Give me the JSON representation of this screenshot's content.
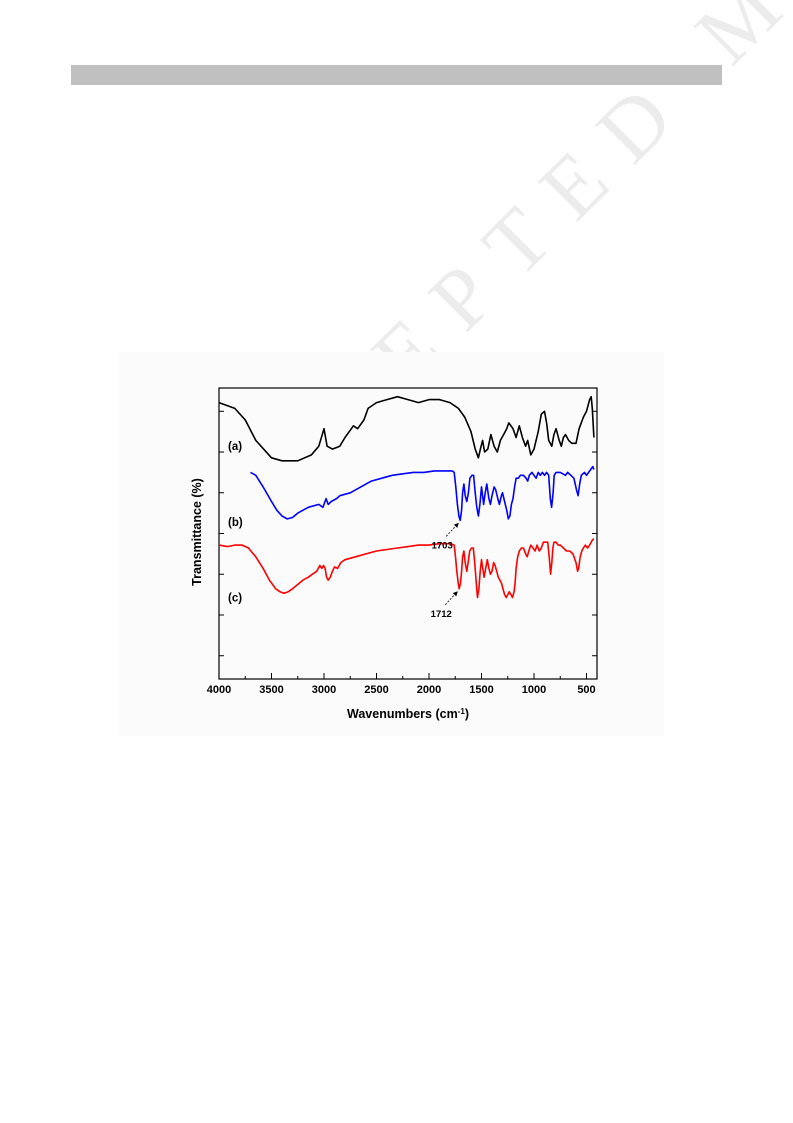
{
  "page": {
    "header_bar_color": "#c0c0c0"
  },
  "watermark": {
    "text": "ACCEPTED MANUSCRIPT"
  },
  "chart_data": {
    "type": "line",
    "xlabel": "Wavenumbers (cm",
    "xlabel_sup": "-1",
    "xlabel_tail": ")",
    "ylabel": "Transmittance (%)",
    "xlim": [
      4000,
      400
    ],
    "x_reversed": true,
    "x_ticks": [
      4000,
      3500,
      3000,
      2500,
      2000,
      1500,
      1000,
      500
    ],
    "y_units": "offset arbitrary",
    "ylim": [
      0,
      100
    ],
    "grid": false,
    "legend": "none",
    "series": [
      {
        "name": "(a)",
        "color": "#000000",
        "points": [
          [
            4000,
            95
          ],
          [
            3850,
            93
          ],
          [
            3750,
            89
          ],
          [
            3650,
            82
          ],
          [
            3500,
            76
          ],
          [
            3400,
            75
          ],
          [
            3250,
            75
          ],
          [
            3120,
            77
          ],
          [
            3050,
            80
          ],
          [
            3000,
            86
          ],
          [
            2970,
            80
          ],
          [
            2920,
            79
          ],
          [
            2850,
            80
          ],
          [
            2800,
            83
          ],
          [
            2760,
            85
          ],
          [
            2720,
            87
          ],
          [
            2680,
            86
          ],
          [
            2620,
            89
          ],
          [
            2580,
            93
          ],
          [
            2500,
            95
          ],
          [
            2400,
            96
          ],
          [
            2300,
            97
          ],
          [
            2200,
            96
          ],
          [
            2100,
            95
          ],
          [
            2000,
            96
          ],
          [
            1900,
            96
          ],
          [
            1800,
            95
          ],
          [
            1720,
            93
          ],
          [
            1660,
            90
          ],
          [
            1600,
            85
          ],
          [
            1560,
            79
          ],
          [
            1530,
            76
          ],
          [
            1510,
            79
          ],
          [
            1490,
            82
          ],
          [
            1470,
            78
          ],
          [
            1440,
            79
          ],
          [
            1410,
            84
          ],
          [
            1380,
            80
          ],
          [
            1350,
            78
          ],
          [
            1320,
            82
          ],
          [
            1290,
            84
          ],
          [
            1260,
            86
          ],
          [
            1240,
            88
          ],
          [
            1200,
            86
          ],
          [
            1170,
            83
          ],
          [
            1140,
            87
          ],
          [
            1110,
            83
          ],
          [
            1080,
            80
          ],
          [
            1060,
            82
          ],
          [
            1030,
            77
          ],
          [
            1000,
            79
          ],
          [
            960,
            85
          ],
          [
            930,
            91
          ],
          [
            900,
            92
          ],
          [
            880,
            88
          ],
          [
            860,
            82
          ],
          [
            830,
            80
          ],
          [
            810,
            84
          ],
          [
            790,
            86
          ],
          [
            760,
            82
          ],
          [
            740,
            80
          ],
          [
            720,
            83
          ],
          [
            700,
            84
          ],
          [
            670,
            82
          ],
          [
            640,
            81
          ],
          [
            600,
            81
          ],
          [
            570,
            86
          ],
          [
            530,
            90
          ],
          [
            500,
            92
          ],
          [
            470,
            96
          ],
          [
            455,
            97
          ],
          [
            445,
            93
          ],
          [
            430,
            83
          ]
        ]
      },
      {
        "name": "(b)",
        "color": "#0000ff",
        "points": [
          [
            3700,
            71
          ],
          [
            3650,
            70
          ],
          [
            3580,
            66
          ],
          [
            3500,
            61
          ],
          [
            3450,
            58
          ],
          [
            3400,
            56
          ],
          [
            3350,
            55
          ],
          [
            3300,
            55.5
          ],
          [
            3250,
            57
          ],
          [
            3150,
            59
          ],
          [
            3050,
            60
          ],
          [
            3010,
            59
          ],
          [
            2980,
            62
          ],
          [
            2960,
            60
          ],
          [
            2930,
            61
          ],
          [
            2880,
            62
          ],
          [
            2850,
            63
          ],
          [
            2750,
            64
          ],
          [
            2650,
            66
          ],
          [
            2550,
            68
          ],
          [
            2450,
            69
          ],
          [
            2350,
            70
          ],
          [
            2250,
            70.5
          ],
          [
            2150,
            71
          ],
          [
            2050,
            71
          ],
          [
            1950,
            71.5
          ],
          [
            1850,
            71.5
          ],
          [
            1780,
            71.5
          ],
          [
            1760,
            71
          ],
          [
            1745,
            66
          ],
          [
            1730,
            60
          ],
          [
            1715,
            56
          ],
          [
            1703,
            54.5
          ],
          [
            1690,
            58
          ],
          [
            1680,
            64
          ],
          [
            1668,
            67
          ],
          [
            1655,
            63
          ],
          [
            1640,
            61
          ],
          [
            1625,
            64
          ],
          [
            1610,
            69
          ],
          [
            1590,
            70
          ],
          [
            1575,
            70
          ],
          [
            1560,
            64
          ],
          [
            1545,
            59
          ],
          [
            1530,
            56
          ],
          [
            1515,
            60
          ],
          [
            1500,
            66
          ],
          [
            1490,
            63
          ],
          [
            1480,
            60
          ],
          [
            1465,
            64
          ],
          [
            1450,
            67
          ],
          [
            1430,
            62
          ],
          [
            1415,
            60
          ],
          [
            1400,
            63
          ],
          [
            1380,
            66
          ],
          [
            1365,
            65
          ],
          [
            1345,
            62
          ],
          [
            1330,
            60
          ],
          [
            1310,
            63
          ],
          [
            1300,
            64
          ],
          [
            1280,
            61
          ],
          [
            1260,
            58
          ],
          [
            1245,
            55
          ],
          [
            1230,
            56
          ],
          [
            1215,
            60
          ],
          [
            1200,
            62
          ],
          [
            1185,
            66
          ],
          [
            1170,
            69
          ],
          [
            1150,
            69
          ],
          [
            1130,
            70
          ],
          [
            1100,
            70
          ],
          [
            1075,
            69
          ],
          [
            1060,
            68
          ],
          [
            1045,
            70
          ],
          [
            1020,
            71
          ],
          [
            1000,
            70
          ],
          [
            980,
            69
          ],
          [
            960,
            71
          ],
          [
            940,
            70
          ],
          [
            920,
            71
          ],
          [
            900,
            70
          ],
          [
            880,
            71
          ],
          [
            860,
            70
          ],
          [
            845,
            62
          ],
          [
            832,
            59
          ],
          [
            818,
            64
          ],
          [
            808,
            70
          ],
          [
            790,
            71
          ],
          [
            750,
            71
          ],
          [
            700,
            70
          ],
          [
            680,
            71
          ],
          [
            650,
            70
          ],
          [
            620,
            69
          ],
          [
            595,
            65
          ],
          [
            580,
            63
          ],
          [
            565,
            67
          ],
          [
            550,
            70
          ],
          [
            520,
            71
          ],
          [
            500,
            70
          ],
          [
            480,
            71
          ],
          [
            460,
            72
          ],
          [
            440,
            73
          ],
          [
            430,
            72
          ]
        ]
      },
      {
        "name": "(c)",
        "color": "#ff0000",
        "points": [
          [
            4000,
            46
          ],
          [
            3920,
            45.5
          ],
          [
            3850,
            46
          ],
          [
            3780,
            46
          ],
          [
            3720,
            45
          ],
          [
            3650,
            42
          ],
          [
            3580,
            38
          ],
          [
            3520,
            34
          ],
          [
            3460,
            31
          ],
          [
            3420,
            30
          ],
          [
            3380,
            29.5
          ],
          [
            3340,
            30
          ],
          [
            3300,
            31
          ],
          [
            3250,
            32.5
          ],
          [
            3200,
            34
          ],
          [
            3150,
            35
          ],
          [
            3110,
            36
          ],
          [
            3070,
            37
          ],
          [
            3040,
            39
          ],
          [
            3020,
            38
          ],
          [
            3005,
            39
          ],
          [
            2990,
            38
          ],
          [
            2975,
            35
          ],
          [
            2960,
            34
          ],
          [
            2940,
            35
          ],
          [
            2920,
            37
          ],
          [
            2900,
            38.5
          ],
          [
            2870,
            38
          ],
          [
            2840,
            40
          ],
          [
            2820,
            40.5
          ],
          [
            2800,
            41
          ],
          [
            2700,
            42
          ],
          [
            2600,
            43
          ],
          [
            2500,
            44
          ],
          [
            2400,
            44.5
          ],
          [
            2300,
            45
          ],
          [
            2200,
            45.5
          ],
          [
            2100,
            46
          ],
          [
            2000,
            46
          ],
          [
            1900,
            46.5
          ],
          [
            1800,
            46.5
          ],
          [
            1760,
            46
          ],
          [
            1748,
            42
          ],
          [
            1735,
            37
          ],
          [
            1722,
            33
          ],
          [
            1712,
            31
          ],
          [
            1700,
            33
          ],
          [
            1690,
            37
          ],
          [
            1680,
            42
          ],
          [
            1668,
            44
          ],
          [
            1655,
            40
          ],
          [
            1640,
            37
          ],
          [
            1628,
            40
          ],
          [
            1612,
            44
          ],
          [
            1595,
            45
          ],
          [
            1578,
            45
          ],
          [
            1565,
            40
          ],
          [
            1550,
            33
          ],
          [
            1538,
            28
          ],
          [
            1525,
            31
          ],
          [
            1512,
            37
          ],
          [
            1500,
            41
          ],
          [
            1488,
            38
          ],
          [
            1475,
            35
          ],
          [
            1460,
            38
          ],
          [
            1445,
            41
          ],
          [
            1430,
            38
          ],
          [
            1415,
            36
          ],
          [
            1400,
            37
          ],
          [
            1385,
            40
          ],
          [
            1370,
            39
          ],
          [
            1355,
            37
          ],
          [
            1340,
            35
          ],
          [
            1325,
            34
          ],
          [
            1310,
            33
          ],
          [
            1295,
            31
          ],
          [
            1280,
            29
          ],
          [
            1265,
            28
          ],
          [
            1250,
            29
          ],
          [
            1235,
            30
          ],
          [
            1220,
            29
          ],
          [
            1205,
            28
          ],
          [
            1190,
            30
          ],
          [
            1180,
            33
          ],
          [
            1170,
            38
          ],
          [
            1155,
            42
          ],
          [
            1140,
            44
          ],
          [
            1120,
            45
          ],
          [
            1100,
            45
          ],
          [
            1080,
            43
          ],
          [
            1065,
            42
          ],
          [
            1050,
            44
          ],
          [
            1030,
            46
          ],
          [
            1010,
            45
          ],
          [
            990,
            44
          ],
          [
            970,
            46
          ],
          [
            950,
            44
          ],
          [
            930,
            45
          ],
          [
            910,
            47
          ],
          [
            890,
            47
          ],
          [
            870,
            47
          ],
          [
            855,
            42
          ],
          [
            842,
            36
          ],
          [
            830,
            40
          ],
          [
            820,
            45
          ],
          [
            810,
            47
          ],
          [
            790,
            47
          ],
          [
            770,
            46
          ],
          [
            750,
            46
          ],
          [
            720,
            45
          ],
          [
            690,
            44
          ],
          [
            660,
            44
          ],
          [
            630,
            43
          ],
          [
            600,
            40
          ],
          [
            585,
            37
          ],
          [
            575,
            38
          ],
          [
            560,
            42
          ],
          [
            545,
            44
          ],
          [
            530,
            45
          ],
          [
            510,
            46
          ],
          [
            490,
            45
          ],
          [
            470,
            46
          ],
          [
            455,
            47
          ],
          [
            440,
            48
          ],
          [
            430,
            48
          ]
        ]
      }
    ],
    "annotations": [
      {
        "text": "1703",
        "series": "(b)",
        "x": 1703
      },
      {
        "text": "1712",
        "series": "(c)",
        "x": 1712
      }
    ]
  }
}
